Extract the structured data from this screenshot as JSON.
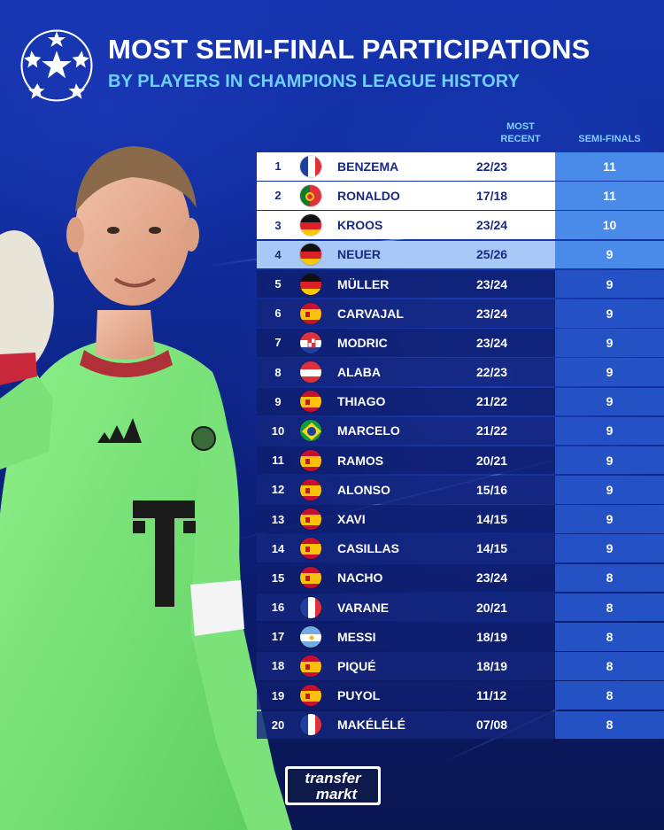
{
  "header": {
    "title": "MOST SEMI-FINAL PARTICIPATIONS",
    "subtitle": "BY PLAYERS IN CHAMPIONS LEAGUE HISTORY"
  },
  "columns": {
    "most_recent_line1": "MOST",
    "most_recent_line2": "RECENT",
    "semi_finals": "SEMI-FINALS"
  },
  "rows": [
    {
      "rank": "1",
      "flag": "france",
      "name": "BENZEMA",
      "recent": "22/23",
      "semi": "11"
    },
    {
      "rank": "2",
      "flag": "portugal",
      "name": "RONALDO",
      "recent": "17/18",
      "semi": "11"
    },
    {
      "rank": "3",
      "flag": "germany",
      "name": "KROOS",
      "recent": "23/24",
      "semi": "10"
    },
    {
      "rank": "4",
      "flag": "germany",
      "name": "NEUER",
      "recent": "25/26",
      "semi": "9"
    },
    {
      "rank": "5",
      "flag": "germany",
      "name": "MÜLLER",
      "recent": "23/24",
      "semi": "9"
    },
    {
      "rank": "6",
      "flag": "spain",
      "name": "CARVAJAL",
      "recent": "23/24",
      "semi": "9"
    },
    {
      "rank": "7",
      "flag": "croatia",
      "name": "MODRIC",
      "recent": "23/24",
      "semi": "9"
    },
    {
      "rank": "8",
      "flag": "austria",
      "name": "ALABA",
      "recent": "22/23",
      "semi": "9"
    },
    {
      "rank": "9",
      "flag": "spain",
      "name": "THIAGO",
      "recent": "21/22",
      "semi": "9"
    },
    {
      "rank": "10",
      "flag": "brazil",
      "name": "MARCELO",
      "recent": "21/22",
      "semi": "9"
    },
    {
      "rank": "11",
      "flag": "spain",
      "name": "RAMOS",
      "recent": "20/21",
      "semi": "9"
    },
    {
      "rank": "12",
      "flag": "spain",
      "name": "ALONSO",
      "recent": "15/16",
      "semi": "9"
    },
    {
      "rank": "13",
      "flag": "spain",
      "name": "XAVI",
      "recent": "14/15",
      "semi": "9"
    },
    {
      "rank": "14",
      "flag": "spain",
      "name": "CASILLAS",
      "recent": "14/15",
      "semi": "9"
    },
    {
      "rank": "15",
      "flag": "spain",
      "name": "NACHO",
      "recent": "23/24",
      "semi": "8"
    },
    {
      "rank": "16",
      "flag": "france",
      "name": "VARANE",
      "recent": "20/21",
      "semi": "8"
    },
    {
      "rank": "17",
      "flag": "argentina",
      "name": "MESSI",
      "recent": "18/19",
      "semi": "8"
    },
    {
      "rank": "18",
      "flag": "spain",
      "name": "PIQUÉ",
      "recent": "18/19",
      "semi": "8"
    },
    {
      "rank": "19",
      "flag": "spain",
      "name": "PUYOL",
      "recent": "11/12",
      "semi": "8"
    },
    {
      "rank": "20",
      "flag": "france",
      "name": "MAKÉLÉLÉ",
      "recent": "07/08",
      "semi": "8"
    }
  ],
  "branding": {
    "logo_line1": "transfer",
    "logo_line2": "markt"
  },
  "colors": {
    "accent": "#6fd0ff",
    "highlight_row": "#a8c8f8",
    "semi_column": "#4a8ae8"
  }
}
